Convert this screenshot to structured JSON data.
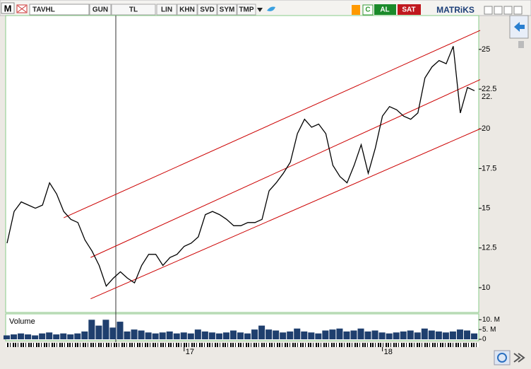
{
  "toolbar": {
    "logo": "M",
    "symbol": "TAVHL",
    "buttons": [
      "GUN",
      "TL",
      "LIN",
      "KHN",
      "SVD",
      "SYM",
      "TMP"
    ],
    "c_button": "C",
    "buy": "AL",
    "sell": "SAT",
    "brand": "MATRiKS"
  },
  "chart_data": {
    "type": "line",
    "color": "#000000",
    "categories": [
      null,
      null,
      null,
      null,
      null,
      null,
      null,
      null,
      null,
      null,
      null,
      null,
      null,
      null,
      null,
      null,
      null,
      null,
      null,
      null,
      null,
      null,
      null,
      null,
      null,
      "17",
      null,
      null,
      null,
      null,
      null,
      null,
      null,
      null,
      null,
      null,
      null,
      null,
      null,
      null,
      null,
      null,
      null,
      null,
      null,
      null,
      null,
      null,
      null,
      null,
      null,
      null,
      null,
      "18",
      null,
      null,
      null,
      null,
      null,
      null,
      null,
      null,
      null,
      null,
      null,
      null,
      null
    ],
    "values": [
      12.8,
      14.8,
      15.4,
      15.2,
      15.0,
      15.2,
      16.6,
      15.9,
      14.8,
      14.3,
      14.1,
      13.0,
      12.3,
      11.4,
      10.1,
      10.6,
      11.0,
      10.6,
      10.3,
      11.4,
      12.1,
      12.1,
      11.4,
      11.9,
      12.1,
      12.6,
      12.8,
      13.2,
      14.6,
      14.8,
      14.6,
      14.3,
      13.9,
      13.9,
      14.1,
      14.1,
      14.3,
      16.1,
      16.6,
      17.2,
      17.9,
      19.7,
      20.6,
      20.1,
      20.3,
      19.7,
      17.7,
      17.0,
      16.6,
      17.7,
      19.0,
      17.2,
      18.8,
      20.8,
      21.4,
      21.2,
      20.8,
      20.6,
      21.0,
      23.2,
      23.9,
      24.3,
      24.1,
      25.2,
      21.0,
      22.6,
      22.4
    ],
    "ylim": [
      8.53,
      27.13
    ],
    "yticks": [
      10,
      {
        "value": 12.5,
        "label": "12.5"
      },
      15,
      {
        "value": 17.5,
        "label": "17.5"
      },
      20,
      {
        "value": 22.5,
        "label": "22.5"
      },
      25
    ],
    "last_value": {
      "value": 22,
      "label": "22."
    },
    "trend_lines": {
      "color": "#cc0000",
      "lines": [
        {
          "x": [
            8,
            66.8
          ],
          "values": [
            14.4,
            26.2
          ]
        },
        {
          "x": [
            11.8,
            66.8
          ],
          "values": [
            11.9,
            23.1
          ]
        },
        {
          "x": [
            11.8,
            66.8
          ],
          "values": [
            9.3,
            20.0
          ]
        }
      ]
    },
    "volume": {
      "label": "Volume",
      "color": "#1f3f6e",
      "values": [
        2000000,
        2500000,
        3000000,
        2500000,
        2000000,
        3000000,
        3500000,
        2500000,
        3000000,
        2500000,
        3000000,
        4000000,
        10000000,
        7000000,
        10000000,
        6000000,
        9000000,
        4000000,
        5000000,
        4500000,
        3500000,
        3000000,
        3500000,
        4000000,
        3000000,
        3500000,
        3000000,
        5000000,
        4000000,
        3500000,
        3000000,
        3500000,
        4500000,
        3500000,
        3000000,
        5000000,
        7000000,
        5000000,
        4500000,
        3500000,
        4000000,
        5500000,
        4000000,
        3500000,
        3000000,
        4500000,
        5000000,
        5500000,
        4000000,
        4500000,
        5500000,
        4000000,
        4500000,
        3500000,
        3000000,
        3500000,
        4000000,
        4500000,
        3500000,
        5500000,
        4500000,
        4000000,
        3500000,
        4000000,
        5000000,
        4500000,
        3000000
      ],
      "ylim": [
        0,
        13000000
      ],
      "yticks": [
        0,
        {
          "value": 5000000,
          "label": "5. M"
        },
        {
          "value": 10000000,
          "label": "10. M"
        }
      ]
    }
  }
}
